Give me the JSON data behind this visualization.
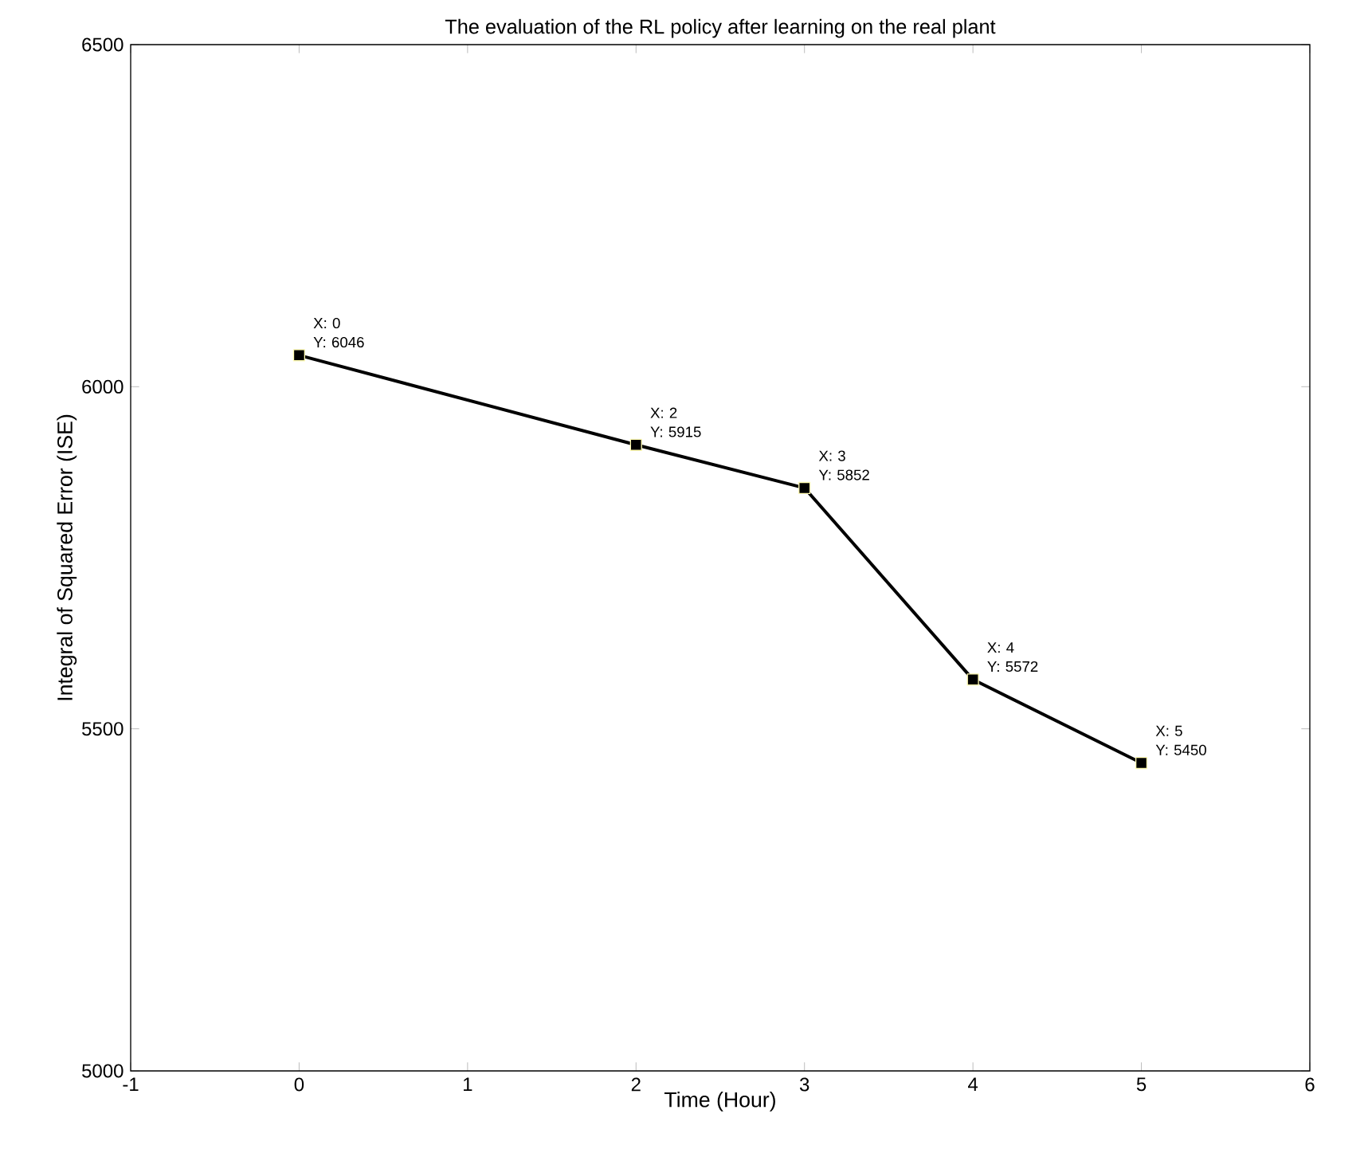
{
  "chart_data": {
    "type": "line",
    "title": "The evaluation of the RL policy after learning on the real plant",
    "xlabel": "Time (Hour)",
    "ylabel": "Integral of Squared Error (ISE)",
    "x": [
      0,
      2,
      3,
      4,
      5
    ],
    "series": [
      {
        "color": "#000000",
        "values": [
          6046,
          5915,
          5852,
          5572,
          5450
        ]
      }
    ],
    "xlim": [
      -1,
      6
    ],
    "xticks": [
      -1,
      0,
      1,
      2,
      3,
      4,
      5,
      6
    ],
    "ylim": [
      5000,
      6500
    ],
    "yticks": [
      5000,
      5500,
      6000,
      6500
    ],
    "marker": "square",
    "line_style": "solid",
    "grid": false,
    "annotations": [
      {
        "text": "X: 0",
        "x": 0,
        "y": 6046
      },
      {
        "text": "Y: 6046",
        "x": 0,
        "y": 6046
      },
      {
        "text": "X: 2",
        "x": 2,
        "y": 5915
      },
      {
        "text": "Y: 5915",
        "x": 2,
        "y": 5915
      },
      {
        "text": "X: 3",
        "x": 3,
        "y": 5852
      },
      {
        "text": "Y: 5852",
        "x": 3,
        "y": 5852
      },
      {
        "text": "X: 4",
        "x": 4,
        "y": 5572
      },
      {
        "text": "Y: 5572",
        "x": 4,
        "y": 5572
      },
      {
        "text": "X: 5",
        "x": 5,
        "y": 5450
      },
      {
        "text": "Y: 5450",
        "x": 5,
        "y": 5450
      }
    ]
  }
}
